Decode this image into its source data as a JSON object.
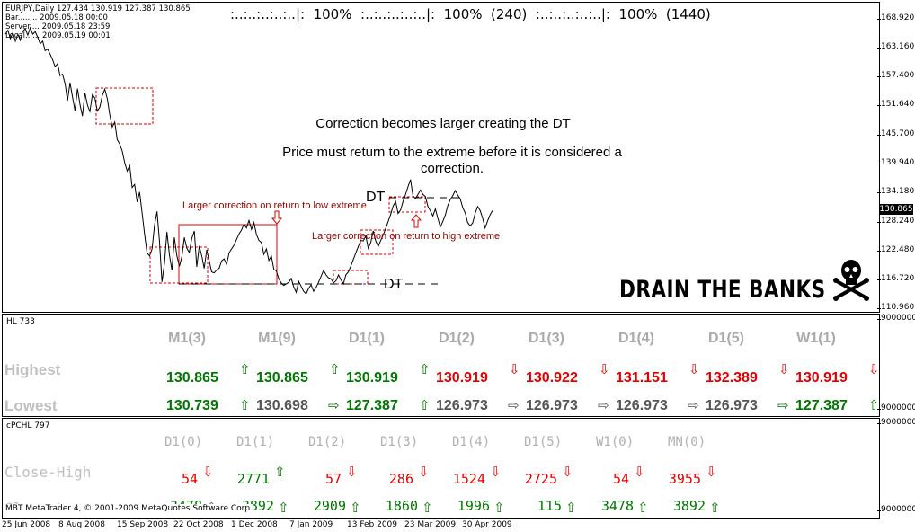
{
  "header": {
    "symbol_line": "EURJPY,Daily  127.434 130.919 127.387 130.865",
    "bar_line": "Bar........ 2009.05.18 00:00",
    "server_line": "Server.... 2009.05.18 23:59",
    "local_line": "Local...... 2009.05.19 00:01",
    "timers": ":..:..:..:..:..|:  100%  :..:..:..:..:..|:  100%  (240)  :..:..:..:..:..|:  100%  (1440)"
  },
  "annotations": {
    "title1": "Correction becomes larger creating the DT",
    "title2": "Price must return to the extreme before it is considered a correction.",
    "note_low": "Larger correction on return to low extreme",
    "note_high": "Larger correction on return to high extreme",
    "dt_top": "DT",
    "dt_bottom": "DT",
    "drain": "DRAIN THE BANKS"
  },
  "chart_data": {
    "type": "line",
    "symbol": "EURJPY",
    "timeframe": "Daily",
    "ylim": [
      110.96,
      168.92
    ],
    "yticks": [
      "168.920",
      "163.160",
      "157.400",
      "151.640",
      "145.700",
      "139.940",
      "134.180",
      "128.240",
      "122.480",
      "116.720",
      "110.960"
    ],
    "current_price": "130.865",
    "xticks": [
      "25 Jun 2008",
      "8 Aug 2008",
      "15 Sep 2008",
      "22 Oct 2008",
      "1 Dec 2008",
      "7 Jan 2009",
      "13 Feb 2009",
      "23 Mar 2009",
      "30 Apr 2009"
    ],
    "series": [
      {
        "values": [
          166.2,
          167.0,
          165.3,
          166.5,
          164.8,
          166.2,
          165.0,
          166.8,
          167.3,
          166.0,
          167.5,
          166.2,
          166.7,
          165.6,
          164.3,
          164.8,
          162.9,
          163.2,
          162.2,
          161.1,
          159.7,
          160.3,
          157.9,
          158.2,
          156.3,
          152.9,
          156.5,
          153.6,
          150.9,
          155.3,
          152.1,
          149.8,
          154.5,
          152.0,
          150.7,
          154.1,
          153.4,
          150.8,
          151.6,
          153.9,
          155.2,
          153.3,
          150.1,
          147.6,
          148.6,
          145.1,
          144.2,
          142.8,
          140.5,
          138.8,
          139.9,
          135.5,
          136.1,
          132.6,
          134.6,
          130.4,
          126.1,
          122.4,
          121.8,
          123.2,
          127.9,
          130.7,
          124.8,
          116.6,
          120.3,
          126.6,
          122.0,
          118.9,
          125.5,
          121.8,
          119.7,
          121.6,
          125.5,
          123.3,
          122.5,
          125.3,
          126.8,
          119.6,
          123.8,
          121.8,
          119.3,
          123.0,
          120.8,
          118.6,
          118.4,
          119.0,
          119.3,
          120.8,
          121.2,
          120.1,
          122.4,
          123.2,
          124.0,
          125.1,
          126.2,
          127.0,
          128.2,
          127.4,
          128.9,
          127.1,
          128.5,
          126.1,
          124.9,
          124.5,
          122.1,
          123.2,
          120.9,
          121.8,
          119.1,
          118.8,
          117.2,
          116.4,
          115.9,
          116.2,
          116.5,
          117.3,
          115.6,
          114.5,
          116.7,
          115.7,
          114.7,
          114.2,
          115.3,
          116.0,
          114.7,
          115.5,
          116.5,
          117.7,
          118.9,
          118.0,
          117.4,
          117.2,
          116.4,
          116.8,
          118.0,
          117.0,
          116.2,
          118.0,
          118.6,
          119.8,
          121.1,
          122.4,
          123.7,
          124.9,
          124.8,
          125.8,
          123.3,
          124.5,
          126.8,
          124.8,
          123.7,
          124.9,
          126.0,
          127.3,
          128.7,
          130.1,
          131.8,
          132.7,
          130.3,
          131.0,
          132.7,
          134.1,
          135.7,
          137.1,
          133.8,
          133.3,
          134.1,
          135.0,
          134.1,
          133.7,
          131.7,
          130.8,
          129.8,
          131.2,
          129.3,
          127.6,
          128.7,
          130.0,
          131.9,
          133.1,
          133.9,
          134.9,
          134.0,
          133.2,
          131.5,
          130.4,
          128.5,
          127.8,
          128.4,
          130.3,
          131.7,
          130.9,
          129.4,
          127.4,
          128.8,
          130.0,
          130.865
        ]
      }
    ]
  },
  "hl": {
    "subtitle": "HL 733",
    "highest_label": "Highest",
    "lowest_label": "Lowest",
    "yticks": [
      "9000000",
      "9000000"
    ],
    "columns": [
      {
        "tf": "M1(3)",
        "high": "130.865",
        "high_color": "#007700",
        "low": "130.739",
        "low_color": "#007700",
        "high_arrow": "⇧",
        "high_arrow_color": "#007700",
        "low_arrow": "⇧",
        "low_arrow_color": "#007700"
      },
      {
        "tf": "M1(9)",
        "high": "130.865",
        "high_color": "#007700",
        "low": "130.698",
        "low_color": "#555555",
        "high_arrow": "⇧",
        "high_arrow_color": "#007700",
        "low_arrow": "⇨",
        "low_arrow_color": "#007700"
      },
      {
        "tf": "D1(1)",
        "high": "130.919",
        "high_color": "#007700",
        "low": "127.387",
        "low_color": "#007700",
        "high_arrow": "⇧",
        "high_arrow_color": "#007700",
        "low_arrow": "⇧",
        "low_arrow_color": "#007700"
      },
      {
        "tf": "D1(2)",
        "high": "130.919",
        "high_color": "#e00000",
        "low": "126.973",
        "low_color": "#555555",
        "high_arrow": "⇩",
        "high_arrow_color": "#e00000",
        "low_arrow": "⇨",
        "low_arrow_color": "#555555"
      },
      {
        "tf": "D1(3)",
        "high": "130.922",
        "high_color": "#e00000",
        "low": "126.973",
        "low_color": "#555555",
        "high_arrow": "⇩",
        "high_arrow_color": "#e00000",
        "low_arrow": "⇨",
        "low_arrow_color": "#555555"
      },
      {
        "tf": "D1(4)",
        "high": "131.151",
        "high_color": "#e00000",
        "low": "126.973",
        "low_color": "#555555",
        "high_arrow": "⇩",
        "high_arrow_color": "#e00000",
        "low_arrow": "⇨",
        "low_arrow_color": "#555555"
      },
      {
        "tf": "D1(5)",
        "high": "132.389",
        "high_color": "#e00000",
        "low": "126.973",
        "low_color": "#555555",
        "high_arrow": "⇩",
        "high_arrow_color": "#e00000",
        "low_arrow": "⇨",
        "low_arrow_color": "#007700"
      },
      {
        "tf": "W1(1)",
        "high": "130.919",
        "high_color": "#e00000",
        "low": "127.387",
        "low_color": "#007700",
        "high_arrow": "⇩",
        "high_arrow_color": "#e00000",
        "low_arrow": "⇧",
        "low_arrow_color": "#007700"
      }
    ]
  },
  "pc": {
    "subtitle": "cPCHL 797",
    "close_high_label": "Close-High",
    "close_low_label": "Close-Low",
    "footer": "MBT MetaTrader 4, © 2001-2009 MetaQuotes Software Corp.",
    "yticks": [
      "9000000",
      "9000000"
    ],
    "columns": [
      {
        "tf": "D1(0)",
        "ch": "54",
        "ch_color": "#e00000",
        "ch_arrow": "⇩",
        "ch_arrow_color": "#e00000",
        "cl": "3478",
        "cl_arrow": "⇧"
      },
      {
        "tf": "D1(1)",
        "ch": "2771",
        "ch_color": "#007700",
        "ch_arrow": "⇧",
        "ch_arrow_color": "#007700",
        "cl": "3892",
        "cl_arrow": "⇧"
      },
      {
        "tf": "D1(2)",
        "ch": "57",
        "ch_color": "#e00000",
        "ch_arrow": "⇩",
        "ch_arrow_color": "#e00000",
        "cl": "2909",
        "cl_arrow": "⇧"
      },
      {
        "tf": "D1(3)",
        "ch": "286",
        "ch_color": "#e00000",
        "ch_arrow": "⇩",
        "ch_arrow_color": "#e00000",
        "cl": "1860",
        "cl_arrow": "⇧"
      },
      {
        "tf": "D1(4)",
        "ch": "1524",
        "ch_color": "#e00000",
        "ch_arrow": "⇩",
        "ch_arrow_color": "#e00000",
        "cl": "1996",
        "cl_arrow": "⇧"
      },
      {
        "tf": "D1(5)",
        "ch": "2725",
        "ch_color": "#e00000",
        "ch_arrow": "⇩",
        "ch_arrow_color": "#e00000",
        "cl": "115",
        "cl_arrow": "⇧"
      },
      {
        "tf": "W1(0)",
        "ch": "54",
        "ch_color": "#e00000",
        "ch_arrow": "⇩",
        "ch_arrow_color": "#e00000",
        "cl": "3478",
        "cl_arrow": "⇧"
      },
      {
        "tf": "MN(0)",
        "ch": "3955",
        "ch_color": "#e00000",
        "ch_arrow": "⇩",
        "ch_arrow_color": "#e00000",
        "cl": "3892",
        "cl_arrow": "⇧"
      }
    ]
  }
}
